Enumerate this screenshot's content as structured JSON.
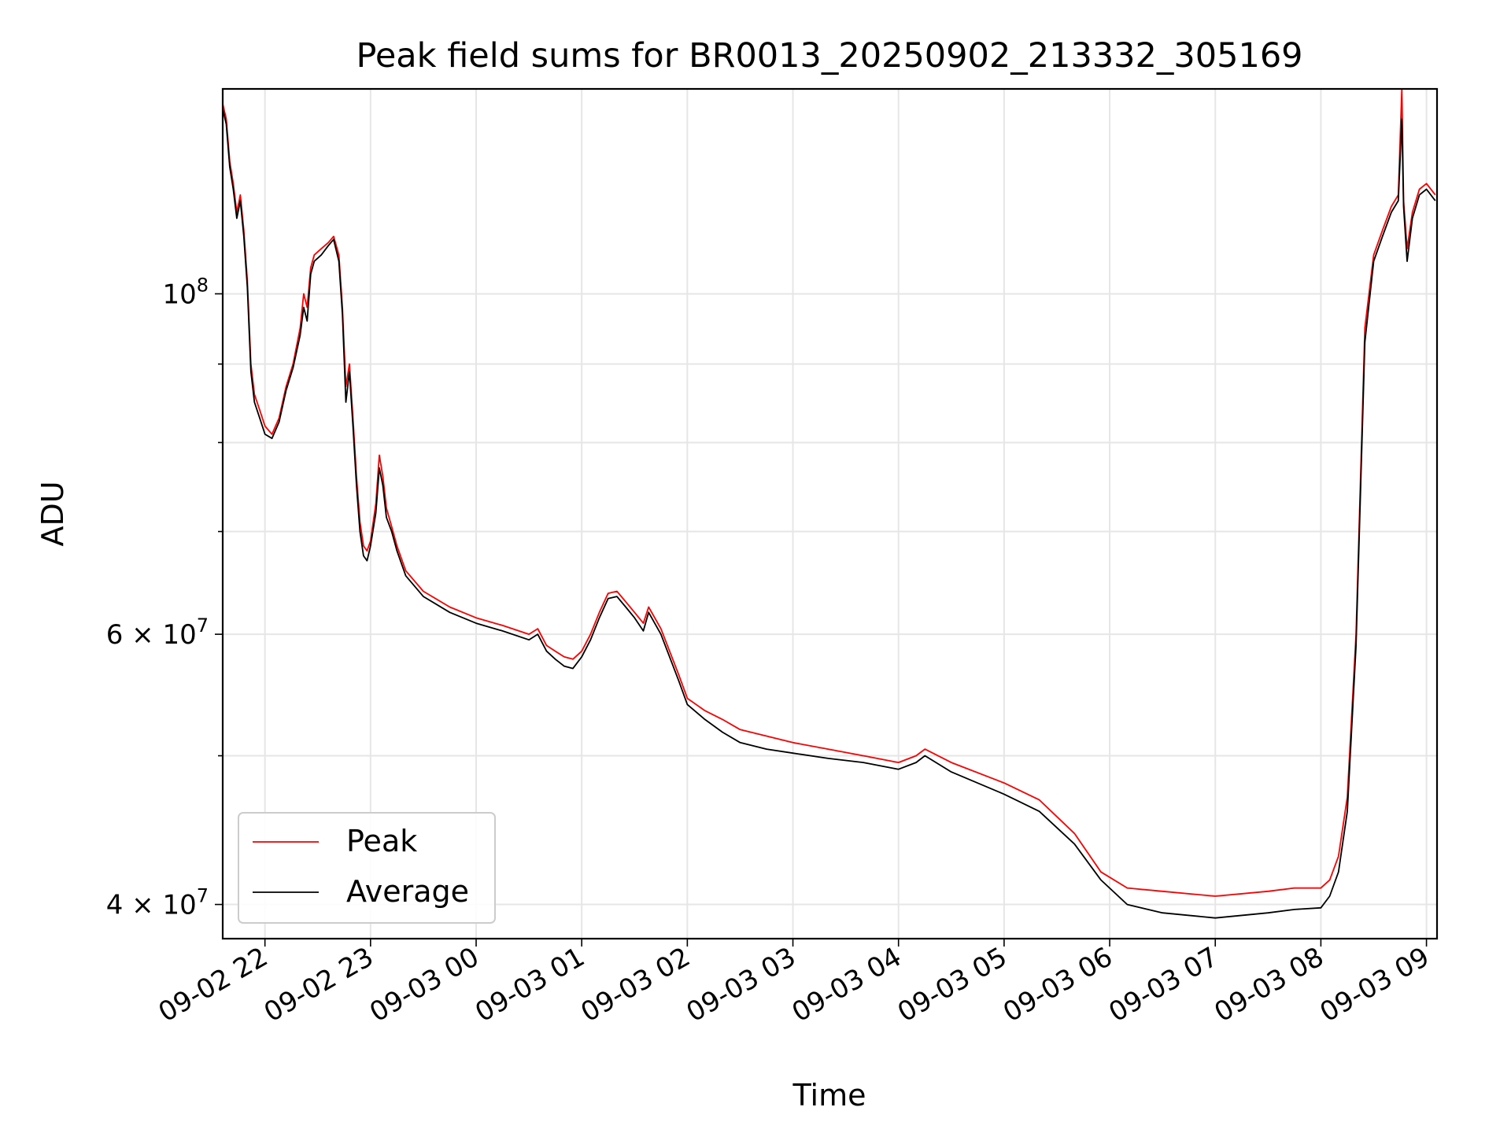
{
  "chart_data": {
    "type": "line",
    "title": "Peak field sums for BR0013_20250902_213332_305169",
    "xlabel": "Time",
    "ylabel": "ADU",
    "yscale": "log",
    "ylim": [
      38000000,
      136000000
    ],
    "xlim": [
      "2025-09-02 21:36",
      "2025-09-03 09:06"
    ],
    "x_ticks": [
      {
        "t": "2025-09-02 22:00",
        "label": "09-02 22"
      },
      {
        "t": "2025-09-02 23:00",
        "label": "09-02 23"
      },
      {
        "t": "2025-09-03 00:00",
        "label": "09-03 00"
      },
      {
        "t": "2025-09-03 01:00",
        "label": "09-03 01"
      },
      {
        "t": "2025-09-03 02:00",
        "label": "09-03 02"
      },
      {
        "t": "2025-09-03 03:00",
        "label": "09-03 03"
      },
      {
        "t": "2025-09-03 04:00",
        "label": "09-03 04"
      },
      {
        "t": "2025-09-03 05:00",
        "label": "09-03 05"
      },
      {
        "t": "2025-09-03 06:00",
        "label": "09-03 06"
      },
      {
        "t": "2025-09-03 07:00",
        "label": "09-03 07"
      },
      {
        "t": "2025-09-03 08:00",
        "label": "09-03 08"
      },
      {
        "t": "2025-09-03 09:00",
        "label": "09-03 09"
      }
    ],
    "y_major_ticks": [
      {
        "value": 100000000,
        "base": "10",
        "exp": "8"
      },
      {
        "value": 60000000,
        "base": "6 × 10",
        "exp": "7"
      },
      {
        "value": 40000000,
        "base": "4 × 10",
        "exp": "7"
      }
    ],
    "y_minor_ticks": [
      50000000,
      70000000,
      80000000,
      90000000
    ],
    "grid": true,
    "legend_position": "lower-left",
    "series": [
      {
        "name": "Peak",
        "color": "#ff0000",
        "points": [
          [
            "2025-09-02 21:36",
            133000000
          ],
          [
            "2025-09-02 21:38",
            130000000
          ],
          [
            "2025-09-02 21:40",
            122000000
          ],
          [
            "2025-09-02 21:42",
            118000000
          ],
          [
            "2025-09-02 21:44",
            113000000
          ],
          [
            "2025-09-02 21:46",
            116000000
          ],
          [
            "2025-09-02 21:48",
            110000000
          ],
          [
            "2025-09-02 21:50",
            102000000
          ],
          [
            "2025-09-02 21:52",
            90000000
          ],
          [
            "2025-09-02 21:54",
            86000000
          ],
          [
            "2025-09-02 21:57",
            84000000
          ],
          [
            "2025-09-02 22:00",
            82000000
          ],
          [
            "2025-09-02 22:04",
            81000000
          ],
          [
            "2025-09-02 22:08",
            83000000
          ],
          [
            "2025-09-02 22:12",
            87000000
          ],
          [
            "2025-09-02 22:16",
            90000000
          ],
          [
            "2025-09-02 22:20",
            95000000
          ],
          [
            "2025-09-02 22:22",
            100000000
          ],
          [
            "2025-09-02 22:24",
            98000000
          ],
          [
            "2025-09-02 22:26",
            104000000
          ],
          [
            "2025-09-02 22:28",
            106000000
          ],
          [
            "2025-09-02 22:32",
            107000000
          ],
          [
            "2025-09-02 22:36",
            108000000
          ],
          [
            "2025-09-02 22:39",
            109000000
          ],
          [
            "2025-09-02 22:42",
            106000000
          ],
          [
            "2025-09-02 22:44",
            98000000
          ],
          [
            "2025-09-02 22:46",
            87000000
          ],
          [
            "2025-09-02 22:48",
            90000000
          ],
          [
            "2025-09-02 22:50",
            83000000
          ],
          [
            "2025-09-02 22:52",
            76000000
          ],
          [
            "2025-09-02 22:54",
            71000000
          ],
          [
            "2025-09-02 22:56",
            68500000
          ],
          [
            "2025-09-02 22:58",
            68000000
          ],
          [
            "2025-09-02 23:00",
            69000000
          ],
          [
            "2025-09-02 23:03",
            73000000
          ],
          [
            "2025-09-02 23:05",
            78500000
          ],
          [
            "2025-09-02 23:07",
            76000000
          ],
          [
            "2025-09-02 23:09",
            72500000
          ],
          [
            "2025-09-02 23:12",
            70500000
          ],
          [
            "2025-09-02 23:15",
            68500000
          ],
          [
            "2025-09-02 23:20",
            66000000
          ],
          [
            "2025-09-02 23:30",
            64000000
          ],
          [
            "2025-09-02 23:45",
            62500000
          ],
          [
            "2025-09-03 00:00",
            61500000
          ],
          [
            "2025-09-03 00:15",
            60800000
          ],
          [
            "2025-09-03 00:30",
            60000000
          ],
          [
            "2025-09-03 00:35",
            60500000
          ],
          [
            "2025-09-03 00:40",
            59000000
          ],
          [
            "2025-09-03 00:45",
            58500000
          ],
          [
            "2025-09-03 00:50",
            58000000
          ],
          [
            "2025-09-03 00:55",
            57800000
          ],
          [
            "2025-09-03 01:00",
            58500000
          ],
          [
            "2025-09-03 01:05",
            60000000
          ],
          [
            "2025-09-03 01:10",
            62000000
          ],
          [
            "2025-09-03 01:15",
            63800000
          ],
          [
            "2025-09-03 01:20",
            64000000
          ],
          [
            "2025-09-03 01:25",
            63000000
          ],
          [
            "2025-09-03 01:30",
            62000000
          ],
          [
            "2025-09-03 01:35",
            61000000
          ],
          [
            "2025-09-03 01:38",
            62500000
          ],
          [
            "2025-09-03 01:45",
            60500000
          ],
          [
            "2025-09-03 01:55",
            56500000
          ],
          [
            "2025-09-03 02:00",
            54500000
          ],
          [
            "2025-09-03 02:10",
            53500000
          ],
          [
            "2025-09-03 02:20",
            52800000
          ],
          [
            "2025-09-03 02:30",
            52000000
          ],
          [
            "2025-09-03 02:45",
            51500000
          ],
          [
            "2025-09-03 03:00",
            51000000
          ],
          [
            "2025-09-03 03:20",
            50500000
          ],
          [
            "2025-09-03 03:40",
            50000000
          ],
          [
            "2025-09-03 04:00",
            49500000
          ],
          [
            "2025-09-03 04:10",
            50000000
          ],
          [
            "2025-09-03 04:15",
            50500000
          ],
          [
            "2025-09-03 04:30",
            49500000
          ],
          [
            "2025-09-03 05:00",
            48000000
          ],
          [
            "2025-09-03 05:20",
            46800000
          ],
          [
            "2025-09-03 05:40",
            44500000
          ],
          [
            "2025-09-03 05:55",
            42000000
          ],
          [
            "2025-09-03 06:10",
            41000000
          ],
          [
            "2025-09-03 06:30",
            40800000
          ],
          [
            "2025-09-03 07:00",
            40500000
          ],
          [
            "2025-09-03 07:30",
            40800000
          ],
          [
            "2025-09-03 07:45",
            41000000
          ],
          [
            "2025-09-03 08:00",
            41000000
          ],
          [
            "2025-09-03 08:05",
            41500000
          ],
          [
            "2025-09-03 08:10",
            43000000
          ],
          [
            "2025-09-03 08:15",
            47000000
          ],
          [
            "2025-09-03 08:20",
            60000000
          ],
          [
            "2025-09-03 08:25",
            95000000
          ],
          [
            "2025-09-03 08:30",
            106000000
          ],
          [
            "2025-09-03 08:35",
            110000000
          ],
          [
            "2025-09-03 08:40",
            114000000
          ],
          [
            "2025-09-03 08:44",
            116000000
          ],
          [
            "2025-09-03 08:46",
            136000000
          ],
          [
            "2025-09-03 08:47",
            115000000
          ],
          [
            "2025-09-03 08:49",
            107000000
          ],
          [
            "2025-09-03 08:52",
            113000000
          ],
          [
            "2025-09-03 08:56",
            117000000
          ],
          [
            "2025-09-03 09:00",
            118000000
          ],
          [
            "2025-09-03 09:05",
            116000000
          ]
        ]
      },
      {
        "name": "Average",
        "color": "#000000",
        "points": [
          [
            "2025-09-02 21:36",
            132000000
          ],
          [
            "2025-09-02 21:38",
            129000000
          ],
          [
            "2025-09-02 21:40",
            121000000
          ],
          [
            "2025-09-02 21:42",
            117000000
          ],
          [
            "2025-09-02 21:44",
            112000000
          ],
          [
            "2025-09-02 21:46",
            115000000
          ],
          [
            "2025-09-02 21:48",
            109000000
          ],
          [
            "2025-09-02 21:50",
            101000000
          ],
          [
            "2025-09-02 21:52",
            89000000
          ],
          [
            "2025-09-02 21:54",
            85000000
          ],
          [
            "2025-09-02 21:57",
            83000000
          ],
          [
            "2025-09-02 22:00",
            81000000
          ],
          [
            "2025-09-02 22:04",
            80500000
          ],
          [
            "2025-09-02 22:08",
            82500000
          ],
          [
            "2025-09-02 22:12",
            86500000
          ],
          [
            "2025-09-02 22:16",
            89500000
          ],
          [
            "2025-09-02 22:20",
            94000000
          ],
          [
            "2025-09-02 22:22",
            98000000
          ],
          [
            "2025-09-02 22:24",
            96000000
          ],
          [
            "2025-09-02 22:26",
            103000000
          ],
          [
            "2025-09-02 22:28",
            105000000
          ],
          [
            "2025-09-02 22:32",
            106000000
          ],
          [
            "2025-09-02 22:36",
            107500000
          ],
          [
            "2025-09-02 22:39",
            108500000
          ],
          [
            "2025-09-02 22:42",
            105000000
          ],
          [
            "2025-09-02 22:44",
            97000000
          ],
          [
            "2025-09-02 22:46",
            85000000
          ],
          [
            "2025-09-02 22:48",
            89000000
          ],
          [
            "2025-09-02 22:50",
            82000000
          ],
          [
            "2025-09-02 22:52",
            75000000
          ],
          [
            "2025-09-02 22:54",
            70000000
          ],
          [
            "2025-09-02 22:56",
            67500000
          ],
          [
            "2025-09-02 22:58",
            67000000
          ],
          [
            "2025-09-02 23:00",
            68500000
          ],
          [
            "2025-09-02 23:03",
            72000000
          ],
          [
            "2025-09-02 23:05",
            77000000
          ],
          [
            "2025-09-02 23:07",
            75000000
          ],
          [
            "2025-09-02 23:09",
            71500000
          ],
          [
            "2025-09-02 23:12",
            70000000
          ],
          [
            "2025-09-02 23:15",
            68000000
          ],
          [
            "2025-09-02 23:20",
            65500000
          ],
          [
            "2025-09-02 23:30",
            63500000
          ],
          [
            "2025-09-02 23:45",
            62000000
          ],
          [
            "2025-09-03 00:00",
            61000000
          ],
          [
            "2025-09-03 00:15",
            60300000
          ],
          [
            "2025-09-03 00:30",
            59500000
          ],
          [
            "2025-09-03 00:35",
            60000000
          ],
          [
            "2025-09-03 00:40",
            58500000
          ],
          [
            "2025-09-03 00:45",
            57800000
          ],
          [
            "2025-09-03 00:50",
            57200000
          ],
          [
            "2025-09-03 00:55",
            57000000
          ],
          [
            "2025-09-03 01:00",
            58000000
          ],
          [
            "2025-09-03 01:05",
            59500000
          ],
          [
            "2025-09-03 01:10",
            61500000
          ],
          [
            "2025-09-03 01:15",
            63300000
          ],
          [
            "2025-09-03 01:20",
            63500000
          ],
          [
            "2025-09-03 01:25",
            62500000
          ],
          [
            "2025-09-03 01:30",
            61500000
          ],
          [
            "2025-09-03 01:35",
            60300000
          ],
          [
            "2025-09-03 01:38",
            62000000
          ],
          [
            "2025-09-03 01:45",
            60000000
          ],
          [
            "2025-09-03 01:55",
            56000000
          ],
          [
            "2025-09-03 02:00",
            54000000
          ],
          [
            "2025-09-03 02:10",
            52800000
          ],
          [
            "2025-09-03 02:20",
            51800000
          ],
          [
            "2025-09-03 02:30",
            51000000
          ],
          [
            "2025-09-03 02:45",
            50500000
          ],
          [
            "2025-09-03 03:00",
            50200000
          ],
          [
            "2025-09-03 03:20",
            49800000
          ],
          [
            "2025-09-03 03:40",
            49500000
          ],
          [
            "2025-09-03 04:00",
            49000000
          ],
          [
            "2025-09-03 04:10",
            49500000
          ],
          [
            "2025-09-03 04:15",
            50000000
          ],
          [
            "2025-09-03 04:30",
            48800000
          ],
          [
            "2025-09-03 05:00",
            47200000
          ],
          [
            "2025-09-03 05:20",
            46000000
          ],
          [
            "2025-09-03 05:40",
            43800000
          ],
          [
            "2025-09-03 05:55",
            41500000
          ],
          [
            "2025-09-03 06:10",
            40000000
          ],
          [
            "2025-09-03 06:30",
            39500000
          ],
          [
            "2025-09-03 07:00",
            39200000
          ],
          [
            "2025-09-03 07:30",
            39500000
          ],
          [
            "2025-09-03 07:45",
            39700000
          ],
          [
            "2025-09-03 08:00",
            39800000
          ],
          [
            "2025-09-03 08:05",
            40500000
          ],
          [
            "2025-09-03 08:10",
            42000000
          ],
          [
            "2025-09-03 08:15",
            46000000
          ],
          [
            "2025-09-03 08:20",
            59000000
          ],
          [
            "2025-09-03 08:25",
            93000000
          ],
          [
            "2025-09-03 08:30",
            105000000
          ],
          [
            "2025-09-03 08:35",
            109000000
          ],
          [
            "2025-09-03 08:40",
            113000000
          ],
          [
            "2025-09-03 08:44",
            115000000
          ],
          [
            "2025-09-03 08:46",
            130000000
          ],
          [
            "2025-09-03 08:47",
            114000000
          ],
          [
            "2025-09-03 08:49",
            105000000
          ],
          [
            "2025-09-03 08:52",
            112000000
          ],
          [
            "2025-09-03 08:56",
            116000000
          ],
          [
            "2025-09-03 09:00",
            117000000
          ],
          [
            "2025-09-03 09:05",
            115000000
          ]
        ]
      }
    ]
  }
}
